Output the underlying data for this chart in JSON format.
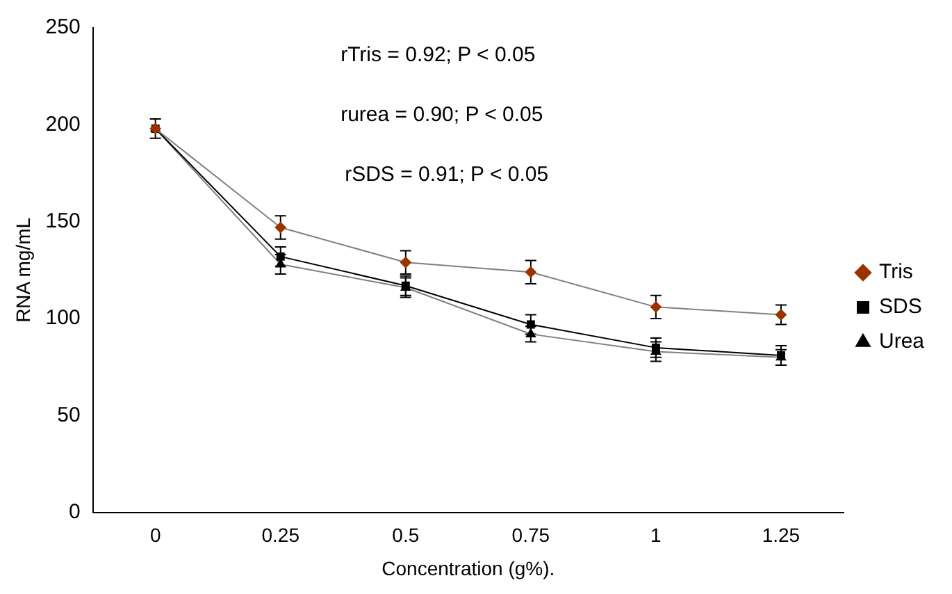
{
  "chart_data": {
    "type": "line",
    "xlabel": "Concentration (g%).",
    "ylabel": "RNA mg/mL",
    "categories": [
      "0",
      "0.25",
      "0.5",
      "0.75",
      "1",
      "1.25"
    ],
    "series": [
      {
        "name": "Tris",
        "color": "#993300",
        "marker": "diamond",
        "values": [
          198,
          147,
          129,
          124,
          106,
          102
        ],
        "errors": [
          null,
          6,
          6,
          6,
          6,
          5
        ]
      },
      {
        "name": "SDS",
        "color": "#000000",
        "marker": "square",
        "values": [
          198,
          132,
          117,
          97,
          85,
          81
        ],
        "errors": [
          5,
          5,
          5,
          5,
          5,
          5
        ]
      },
      {
        "name": "Urea",
        "color": "#000000",
        "marker": "triangle",
        "values": [
          198,
          128,
          116,
          92,
          83,
          80
        ],
        "errors": [
          null,
          5,
          5,
          4,
          5,
          4
        ]
      }
    ],
    "ylim": [
      0,
      250
    ],
    "yticks": [
      0,
      50,
      100,
      150,
      200,
      250
    ],
    "grid": false,
    "legend": "right",
    "annotations": [
      "rTris = 0.92; P < 0.05",
      "rurea = 0.90; P < 0.05",
      "rSDS = 0.91; P < 0.05"
    ]
  }
}
